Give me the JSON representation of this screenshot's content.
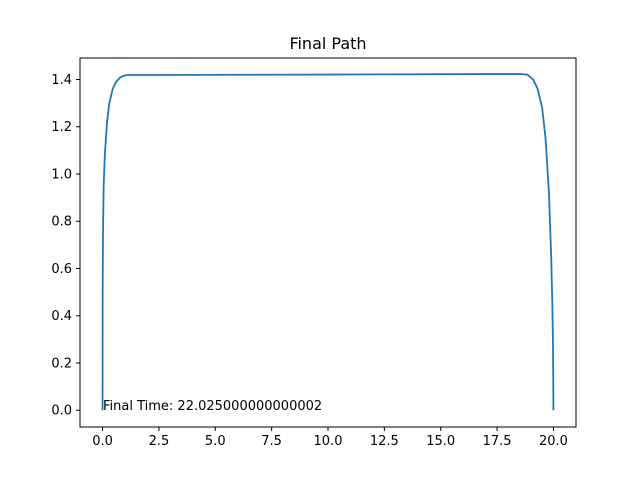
{
  "chart_data": {
    "type": "line",
    "title": "Final Path",
    "xlabel": "",
    "ylabel": "",
    "xlim": [
      -1.0,
      21.0
    ],
    "ylim": [
      -0.071,
      1.491
    ],
    "xticks": [
      "0.0",
      "2.5",
      "5.0",
      "7.5",
      "10.0",
      "12.5",
      "15.0",
      "17.5",
      "20.0"
    ],
    "yticks": [
      "0.0",
      "0.2",
      "0.4",
      "0.6",
      "0.8",
      "1.0",
      "1.2",
      "1.4"
    ],
    "grid": false,
    "annotation": "Final Time: 22.025000000000002",
    "series": [
      {
        "color": "#1f77b4",
        "x": [
          0.0,
          0.005,
          0.02,
          0.05,
          0.1,
          0.2,
          0.3,
          0.45,
          0.6,
          0.8,
          1.0,
          1.2,
          1.5,
          3.0,
          6.0,
          10.0,
          14.0,
          17.0,
          18.6,
          18.85,
          19.1,
          19.3,
          19.5,
          19.65,
          19.8,
          19.9,
          19.95,
          19.98,
          20.0
        ],
        "y": [
          0.0,
          0.5,
          0.75,
          0.95,
          1.08,
          1.22,
          1.3,
          1.36,
          1.39,
          1.41,
          1.418,
          1.419,
          1.419,
          1.419,
          1.42,
          1.421,
          1.422,
          1.423,
          1.423,
          1.42,
          1.4,
          1.36,
          1.28,
          1.15,
          0.92,
          0.65,
          0.45,
          0.28,
          0.0
        ]
      }
    ]
  }
}
